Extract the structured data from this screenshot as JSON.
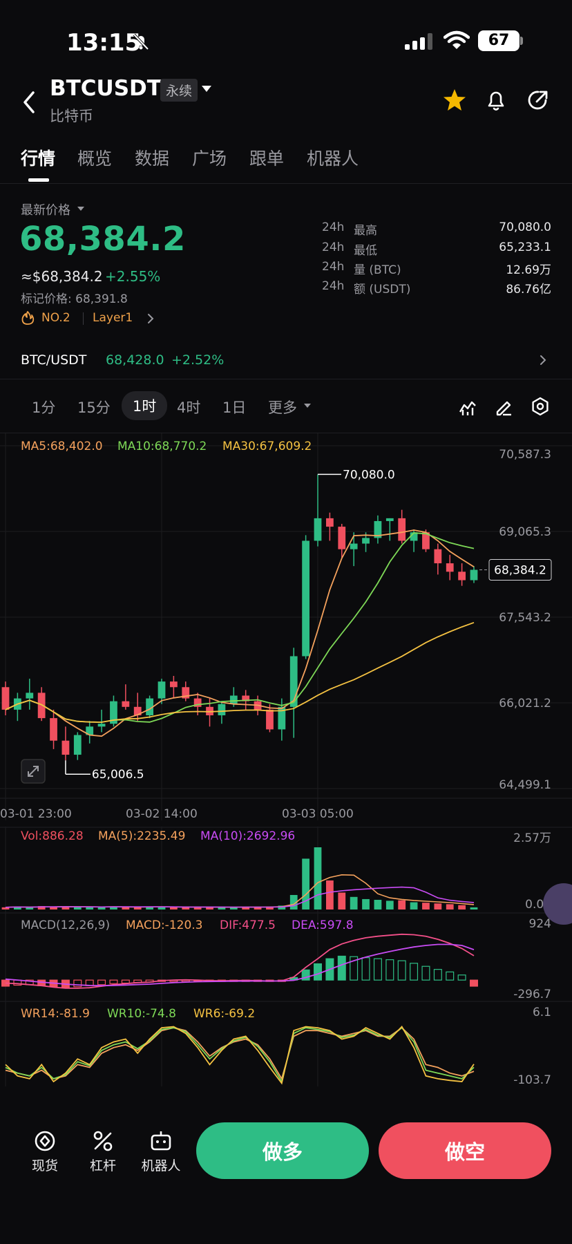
{
  "status": {
    "time": "13:15",
    "battery": "67"
  },
  "header": {
    "symbol": "BTCUSDT",
    "badge": "永续",
    "subtitle": "比特币"
  },
  "tabs": [
    "行情",
    "概览",
    "数据",
    "广场",
    "跟单",
    "机器人"
  ],
  "ticker": {
    "latest_label": "最新价格",
    "price": "68,384.2",
    "usd_price": "≈$68,384.2",
    "change": "+2.55%",
    "mark_price": "标记价格: 68,391.8",
    "rank": "NO.2",
    "tag": "Layer1",
    "stats": [
      {
        "k1": "24h",
        "k2": "最高",
        "v": "70,080.0"
      },
      {
        "k1": "24h",
        "k2": "最低",
        "v": "65,233.1"
      },
      {
        "k1": "24h",
        "k2": "量 (BTC)",
        "v": "12.69万"
      },
      {
        "k1": "24h",
        "k2": "额 (USDT)",
        "v": "86.76亿"
      }
    ]
  },
  "spot": {
    "pair": "BTC/USDT",
    "price": "68,428.0",
    "change": "+2.52%"
  },
  "timeframes": [
    "1分",
    "15分",
    "1时",
    "4时",
    "1日",
    "更多"
  ],
  "colors": {
    "up": "#2ebd85",
    "down": "#f0505f",
    "ma5": "#f5a25d",
    "ma10": "#7ed957",
    "ma30": "#f5c242",
    "vol_ma10": "#c94cf5",
    "dea": "#c94cf5",
    "dif": "#f5508a"
  },
  "main_chart": {
    "legend": {
      "ma5": "MA5:68,402.0",
      "ma10": "MA10:68,770.2",
      "ma30": "MA30:67,609.2"
    },
    "yticks": [
      "70,587.3",
      "69,065.3",
      "67,543.2",
      "66,021.2",
      "64,499.1"
    ],
    "xticks": [
      "03-01 23:00",
      "03-02 14:00",
      "03-03 05:00"
    ],
    "high_label": "70,080.0",
    "low_label": "65,006.5",
    "last_label": "68,384.2"
  },
  "volume": {
    "legend": {
      "vol": "Vol:886.28",
      "ma5": "MA(5):2235.49",
      "ma10": "MA(10):2692.96"
    },
    "max": "2.57万",
    "min": "0.00"
  },
  "macd": {
    "legend": {
      "name": "MACD(12,26,9)",
      "macd": "MACD:-120.3",
      "dif": "DIF:477.5",
      "dea": "DEA:597.8"
    },
    "max": "924",
    "min": "-296.7"
  },
  "wr": {
    "legend": {
      "wr14": "WR14:-81.9",
      "wr10": "WR10:-74.8",
      "wr6": "WR6:-69.2"
    },
    "max": "6.1",
    "min": "-103.7"
  },
  "bottom_nav": {
    "spot": "现货",
    "leverage": "杠杆",
    "bot": "机器人",
    "long": "做多",
    "short": "做空"
  },
  "candles": [
    [
      66300,
      66400,
      65800,
      65900
    ],
    [
      65900,
      66200,
      65700,
      66100
    ],
    [
      66100,
      66450,
      65900,
      66200
    ],
    [
      66200,
      66300,
      65700,
      65750
    ],
    [
      65750,
      65900,
      65200,
      65350
    ],
    [
      65350,
      65600,
      65000,
      65100
    ],
    [
      65100,
      65500,
      65006.5,
      65450
    ],
    [
      65450,
      65700,
      65300,
      65600
    ],
    [
      65600,
      65900,
      65500,
      65650
    ],
    [
      65650,
      66150,
      65600,
      66050
    ],
    [
      66050,
      66350,
      65900,
      65950
    ],
    [
      65950,
      66200,
      65700,
      65800
    ],
    [
      65800,
      66150,
      65750,
      66100
    ],
    [
      66100,
      66450,
      66000,
      66400
    ],
    [
      66400,
      66500,
      66100,
      66300
    ],
    [
      66300,
      66400,
      66050,
      66100
    ],
    [
      66100,
      66200,
      65800,
      65950
    ],
    [
      65950,
      66100,
      65600,
      65800
    ],
    [
      65800,
      66050,
      65650,
      66000
    ],
    [
      66000,
      66300,
      65950,
      66150
    ],
    [
      66150,
      66250,
      65900,
      66050
    ],
    [
      66050,
      66150,
      65800,
      65900
    ],
    [
      65900,
      66000,
      65500,
      65550
    ],
    [
      65550,
      66100,
      65350,
      65950
    ],
    [
      65950,
      67000,
      65400,
      66850
    ],
    [
      66850,
      69000,
      66800,
      68900
    ],
    [
      68900,
      70080,
      68800,
      69300
    ],
    [
      69300,
      69400,
      68900,
      69150
    ],
    [
      69150,
      69200,
      68600,
      68750
    ],
    [
      68750,
      69050,
      68450,
      68850
    ],
    [
      68850,
      69050,
      68700,
      68950
    ],
    [
      68950,
      69350,
      68850,
      69250
    ],
    [
      69250,
      69300,
      68900,
      69300
    ],
    [
      69300,
      69450,
      68850,
      68900
    ],
    [
      68900,
      69100,
      68700,
      69050
    ],
    [
      69050,
      69100,
      68700,
      68750
    ],
    [
      68750,
      68850,
      68300,
      68500
    ],
    [
      68500,
      68650,
      68200,
      68350
    ],
    [
      68350,
      68500,
      68100,
      68200
    ],
    [
      68200,
      68450,
      68150,
      68384.2
    ]
  ],
  "volumes": [
    900,
    1200,
    800,
    1400,
    1100,
    1300,
    1000,
    900,
    1000,
    1300,
    1100,
    900,
    1000,
    1200,
    1100,
    900,
    800,
    1000,
    900,
    1100,
    1000,
    900,
    1200,
    1600,
    6000,
    21000,
    25700,
    12000,
    7000,
    5200,
    4300,
    4000,
    3600,
    3800,
    3000,
    2800,
    2500,
    2200,
    1800,
    886.28
  ],
  "macd_hist": [
    -120,
    -100,
    -90,
    -110,
    -130,
    -140,
    -130,
    -110,
    -90,
    -70,
    -60,
    -50,
    -40,
    -20,
    -10,
    -5,
    -15,
    -25,
    -20,
    -10,
    -5,
    -10,
    -20,
    -15,
    50,
    200,
    320,
    420,
    470,
    460,
    440,
    420,
    400,
    380,
    330,
    270,
    210,
    160,
    100,
    -120.3
  ],
  "dif": [
    -60,
    -70,
    -90,
    -110,
    -140,
    -160,
    -160,
    -150,
    -120,
    -90,
    -70,
    -50,
    -40,
    -10,
    0,
    5,
    0,
    -10,
    -15,
    -10,
    -5,
    -10,
    -20,
    -15,
    60,
    250,
    420,
    600,
    710,
    780,
    830,
    860,
    880,
    900,
    890,
    860,
    800,
    720,
    620,
    477.5
  ],
  "dea": [
    20,
    0,
    -20,
    -40,
    -60,
    -80,
    -95,
    -105,
    -110,
    -105,
    -98,
    -88,
    -80,
    -65,
    -50,
    -40,
    -32,
    -28,
    -25,
    -22,
    -20,
    -18,
    -18,
    -17,
    -5,
    50,
    120,
    210,
    300,
    380,
    450,
    510,
    560,
    610,
    650,
    680,
    700,
    700,
    680,
    597.8
  ],
  "wr14": [
    -80,
    -85,
    -90,
    -80,
    -95,
    -90,
    -70,
    -75,
    -50,
    -40,
    -35,
    -45,
    -30,
    -10,
    -5,
    -10,
    -30,
    -55,
    -40,
    -30,
    -25,
    -35,
    -60,
    -95,
    -20,
    -10,
    -10,
    -15,
    -20,
    -15,
    -10,
    -20,
    -20,
    -5,
    -25,
    -70,
    -75,
    -85,
    -90,
    -81.9
  ],
  "wr10": [
    -75,
    -85,
    -90,
    -75,
    -95,
    -88,
    -65,
    -72,
    -45,
    -35,
    -30,
    -42,
    -28,
    -8,
    -5,
    -12,
    -35,
    -60,
    -42,
    -28,
    -22,
    -38,
    -65,
    -100,
    -15,
    -5,
    -8,
    -12,
    -22,
    -18,
    -8,
    -18,
    -22,
    -5,
    -30,
    -80,
    -85,
    -90,
    -95,
    -74.8
  ],
  "wr6": [
    -70,
    -90,
    -95,
    -70,
    -100,
    -85,
    -60,
    -70,
    -40,
    -30,
    -25,
    -50,
    -25,
    -5,
    -3,
    -15,
    -40,
    -70,
    -45,
    -25,
    -20,
    -45,
    -75,
    -103,
    -10,
    -3,
    -5,
    -10,
    -25,
    -20,
    -5,
    -15,
    -25,
    -3,
    -40,
    -90,
    -95,
    -98,
    -100,
    -69.2
  ]
}
